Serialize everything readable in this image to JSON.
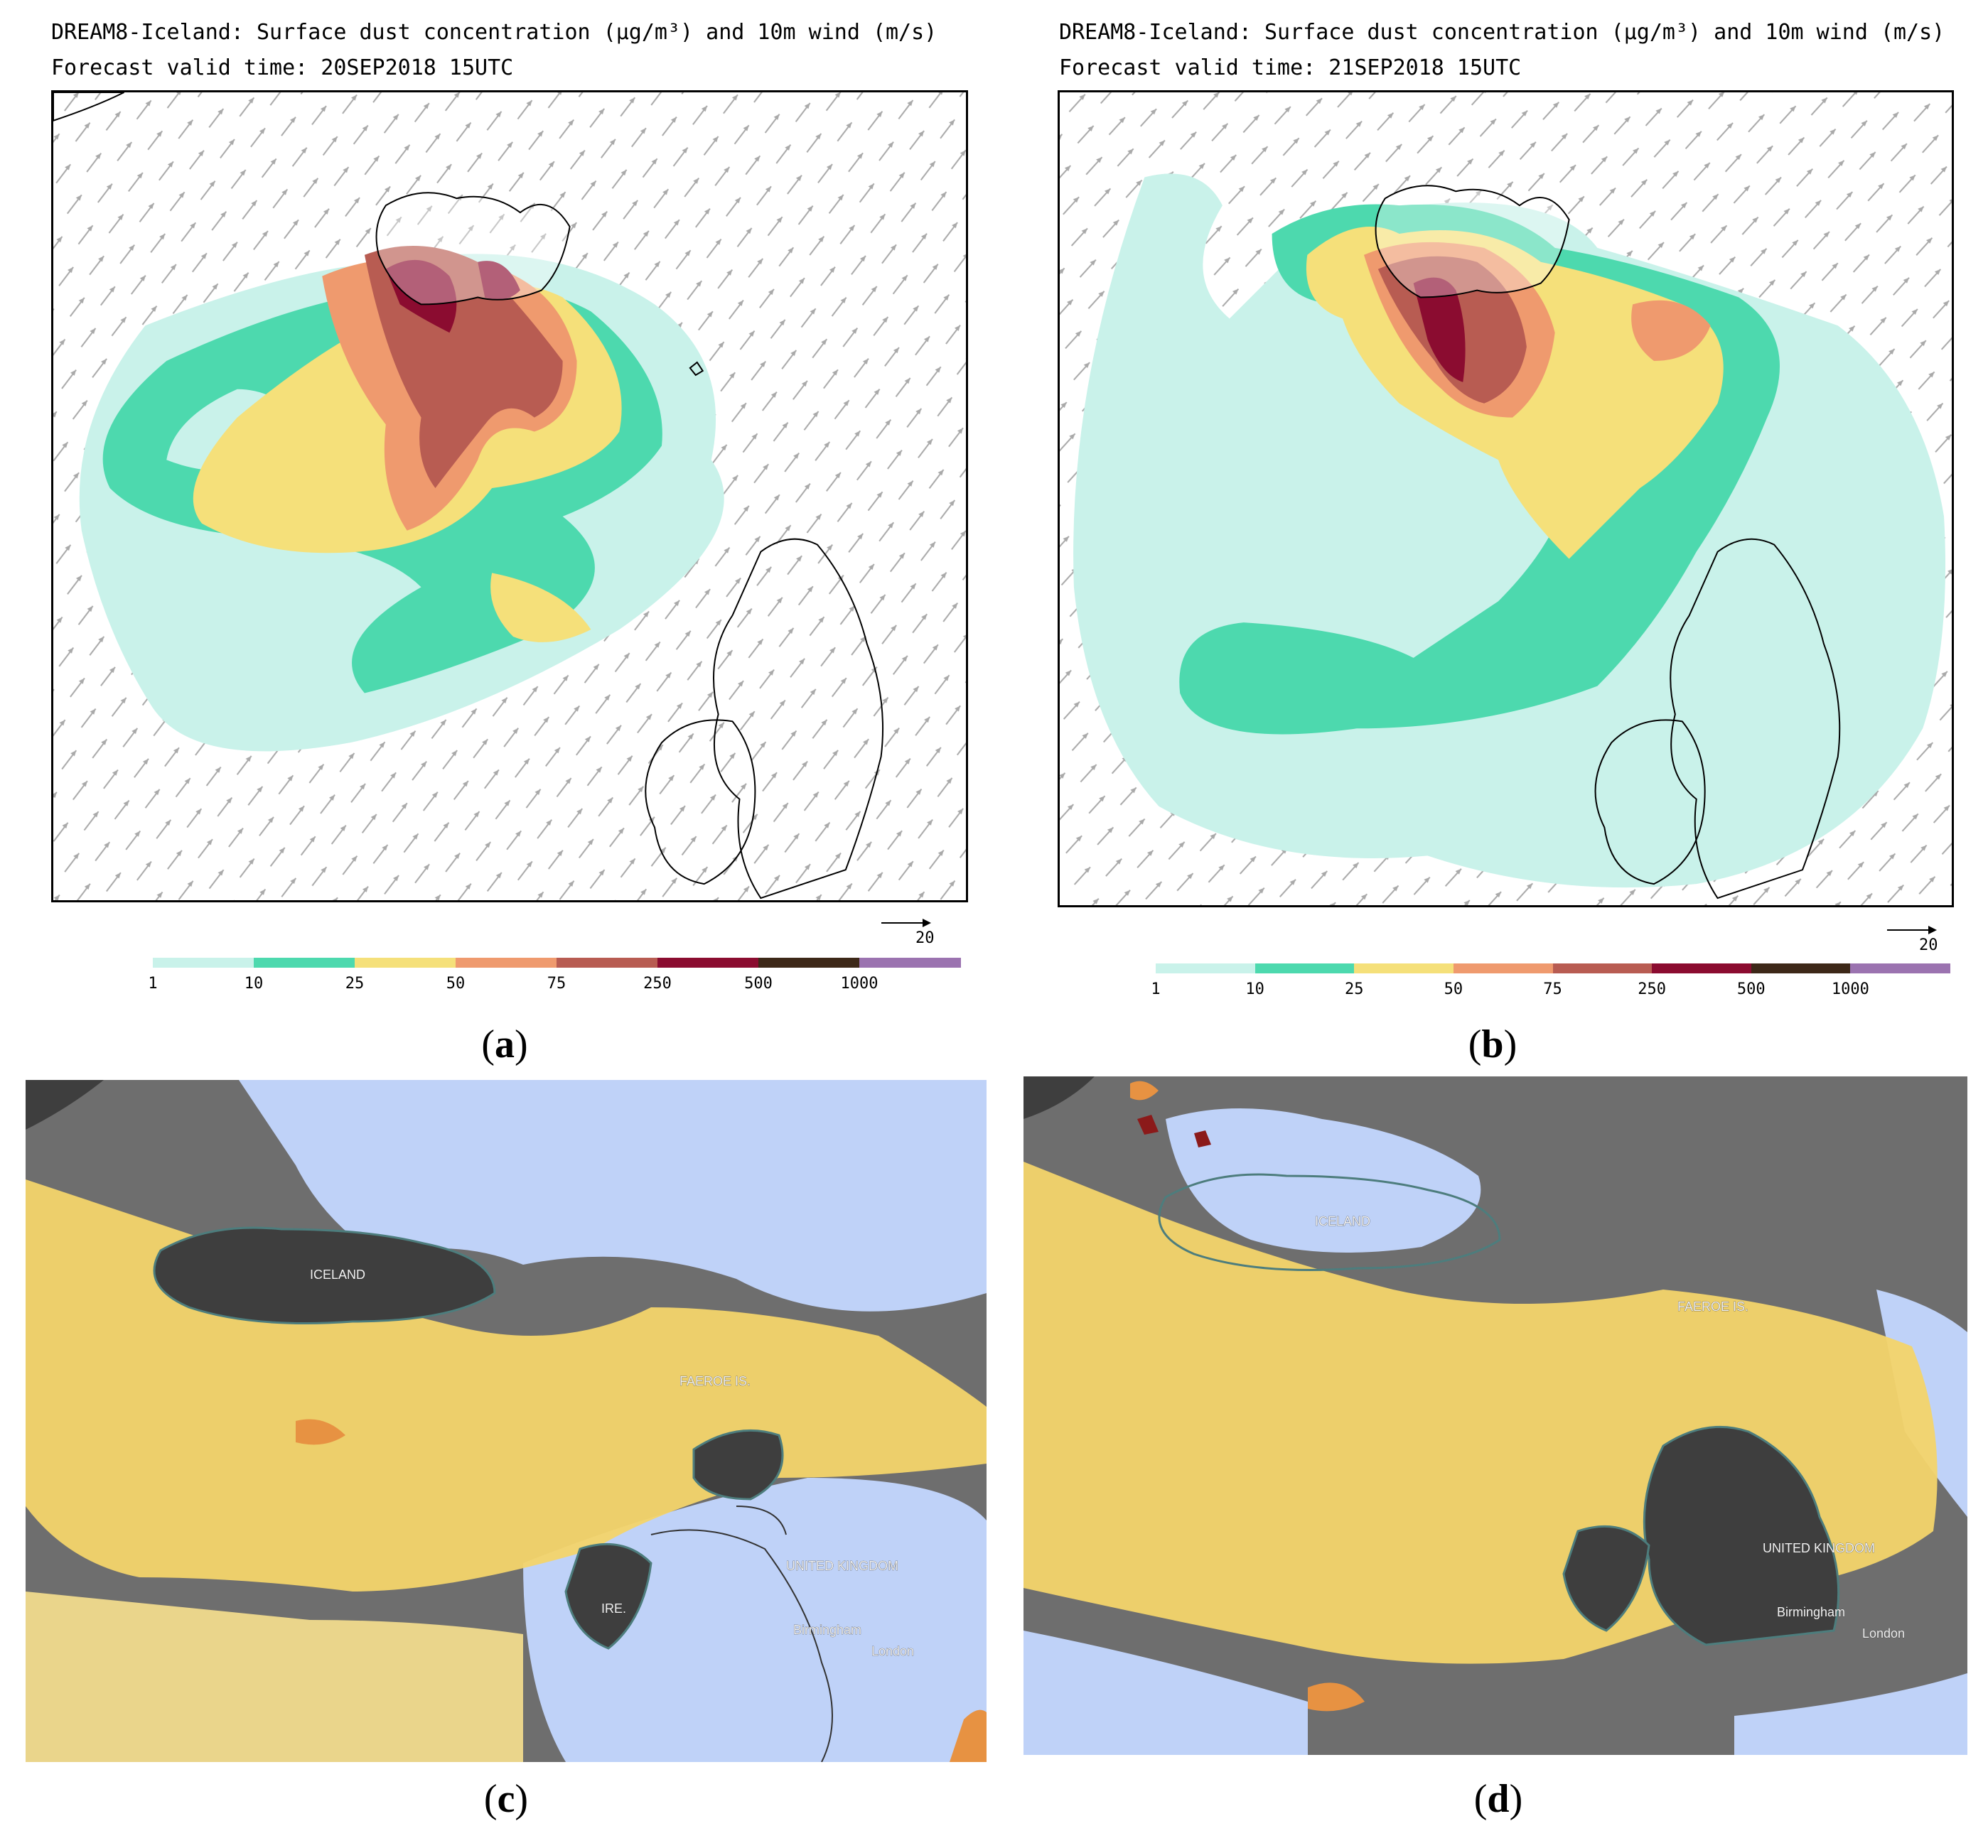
{
  "panels": {
    "a": {
      "title_line1": "DREAM8-Iceland: Surface dust concentration (μg/m³) and 10m wind (m/s)",
      "title_line2": "Forecast valid time: 20SEP2018 15UTC",
      "wind_ref": "20",
      "caption_letter": "a"
    },
    "b": {
      "title_line1": "DREAM8-Iceland: Surface dust concentration (μg/m³) and 10m wind (m/s)",
      "title_line2": "Forecast valid time: 21SEP2018 15UTC",
      "wind_ref": "20",
      "caption_letter": "b"
    },
    "c": {
      "caption_letter": "c",
      "labels": {
        "iceland": "ICELAND",
        "faroe": "FAEROE IS.",
        "uk": "UNITED KINGDOM",
        "ire": "IRE.",
        "birmingham": "Birmingham",
        "london": "London"
      }
    },
    "d": {
      "caption_letter": "d",
      "labels": {
        "iceland": "ICELAND",
        "faroe": "FAEROE IS.",
        "uk": "UNITED KINGDOM",
        "birmingham": "Birmingham",
        "london": "London"
      }
    }
  },
  "colorbar": {
    "ticks": [
      "1",
      "10",
      "25",
      "50",
      "75",
      "250",
      "500",
      "1000"
    ],
    "colors": [
      "#c9f2ea",
      "#4dd9ae",
      "#f5e07a",
      "#ef9a6e",
      "#b85c52",
      "#8b0c30",
      "#3d2818",
      "#9b73b0"
    ]
  },
  "caption_parens": [
    "(",
    ")"
  ]
}
